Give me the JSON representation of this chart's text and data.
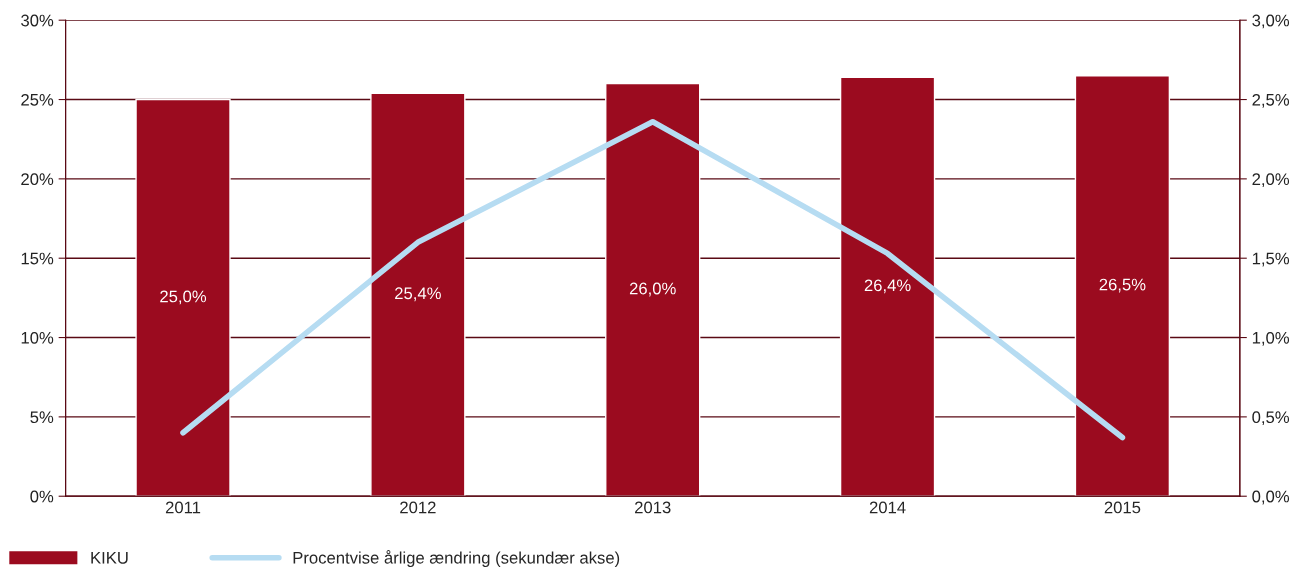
{
  "chart_data": {
    "type": "bar",
    "categories": [
      "2011",
      "2012",
      "2013",
      "2014",
      "2015"
    ],
    "series": [
      {
        "name": "KIKU",
        "color": "#9b0b1f",
        "values": [
          25.0,
          25.4,
          26.0,
          26.4,
          26.5
        ],
        "value_labels": [
          "25,0%",
          "25,4%",
          "26,0%",
          "26,4%",
          "26,5%"
        ]
      },
      {
        "name": "Procentvise årlige ændring (sekundær akse)",
        "type": "line",
        "axis": "y2",
        "color": "#b6dcf2",
        "values": [
          0.4,
          1.6,
          2.36,
          1.53,
          0.37
        ]
      }
    ],
    "ylim": [
      0,
      30
    ],
    "yticks": [
      {
        "value": 0,
        "label": "0%"
      },
      {
        "value": 5,
        "label": "5%"
      },
      {
        "value": 10,
        "label": "10%"
      },
      {
        "value": 15,
        "label": "15%"
      },
      {
        "value": 20,
        "label": "20%"
      },
      {
        "value": 25,
        "label": "25%"
      },
      {
        "value": 30,
        "label": "30%"
      }
    ],
    "y2lim": [
      0,
      3
    ],
    "y2ticks": [
      {
        "value": 0,
        "label": "0,0%"
      },
      {
        "value": 0.5,
        "label": "0,5%"
      },
      {
        "value": 1,
        "label": "1,0%"
      },
      {
        "value": 1.5,
        "label": "1,5%"
      },
      {
        "value": 2,
        "label": "2,0%"
      },
      {
        "value": 2.5,
        "label": "2,5%"
      },
      {
        "value": 3,
        "label": "3,0%"
      }
    ],
    "grid": "y",
    "legend": "bottom left"
  }
}
